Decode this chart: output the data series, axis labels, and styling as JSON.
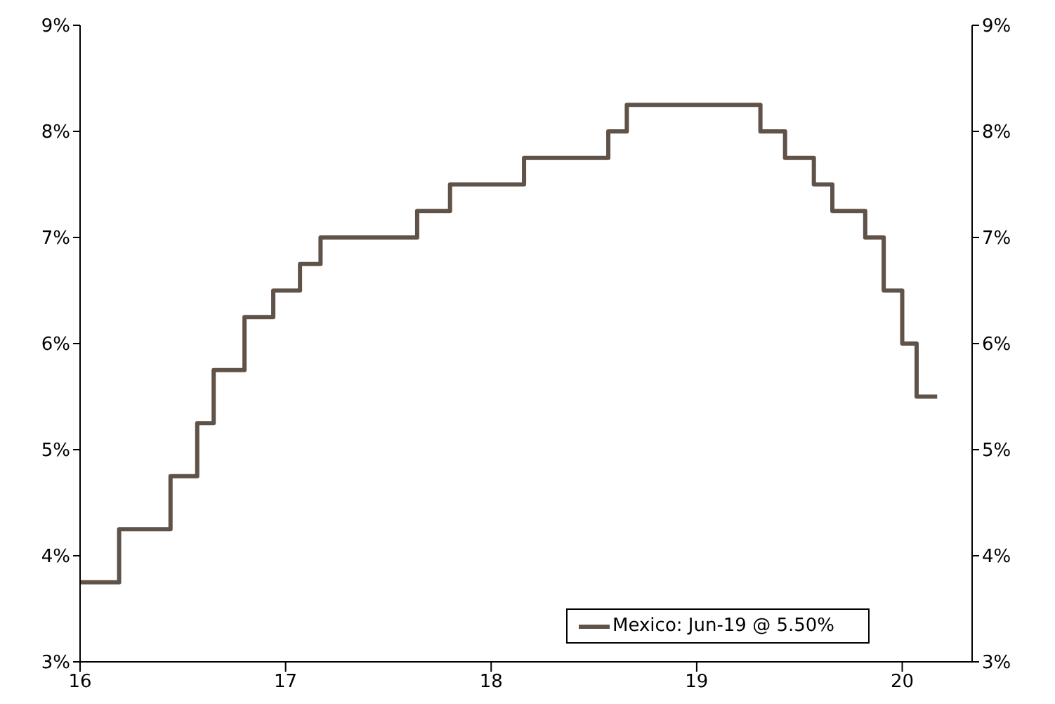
{
  "chart_data": {
    "type": "step",
    "x": [
      16,
      16.19,
      16.44,
      16.57,
      16.65,
      16.8,
      16.94,
      17.07,
      17.17,
      17.64,
      17.8,
      18.16,
      18.57,
      18.66,
      19.31,
      19.43,
      19.57,
      19.66,
      19.82,
      19.91,
      20.0,
      20.07,
      20.17
    ],
    "series": [
      {
        "name": "Mexico: Jun-19 @ 5.50%",
        "color": "#5f5248",
        "values": [
          3.75,
          4.25,
          4.75,
          5.25,
          5.75,
          6.25,
          6.5,
          6.75,
          7.0,
          7.25,
          7.5,
          7.75,
          8.0,
          8.25,
          8.0,
          7.75,
          7.5,
          7.25,
          7.0,
          6.5,
          6.0,
          5.5,
          5.5
        ]
      }
    ],
    "xlim": [
      16,
      20.34
    ],
    "xticks": [
      16,
      17,
      18,
      19,
      20
    ],
    "ylim": [
      3,
      9
    ],
    "yticks": [
      {
        "value": 3,
        "label": "3%"
      },
      {
        "value": 4,
        "label": "4%"
      },
      {
        "value": 5,
        "label": "5%"
      },
      {
        "value": 6,
        "label": "6%"
      },
      {
        "value": 7,
        "label": "7%"
      },
      {
        "value": 8,
        "label": "8%"
      },
      {
        "value": 9,
        "label": "9%"
      }
    ],
    "y2lim": [
      3,
      9
    ],
    "y2ticks": [
      {
        "value": 3,
        "label": "3%"
      },
      {
        "value": 4,
        "label": "4%"
      },
      {
        "value": 5,
        "label": "5%"
      },
      {
        "value": 6,
        "label": "6%"
      },
      {
        "value": 7,
        "label": "7%"
      },
      {
        "value": 8,
        "label": "8%"
      },
      {
        "value": 9,
        "label": "9%"
      }
    ],
    "legend": "bottom right",
    "grid": false,
    "marker": "none",
    "line_style": "solid"
  }
}
